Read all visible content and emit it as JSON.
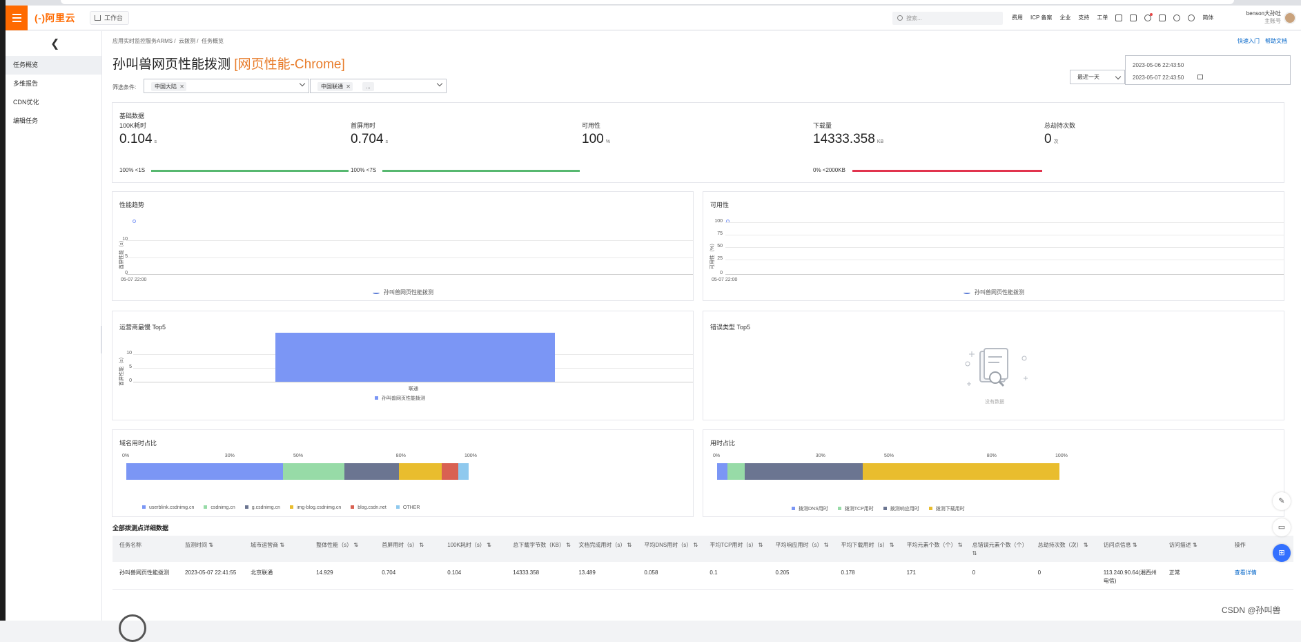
{
  "topbar": {
    "logo": "(-)阿里云",
    "workspace": "工作台",
    "search_placeholder": "搜索...",
    "links": [
      "费用",
      "ICP 备案",
      "企业",
      "支持",
      "工单"
    ],
    "lang": "简体",
    "user_name": "benson大孙吐",
    "user_role": "主账号"
  },
  "sidebar": {
    "items": [
      {
        "label": "任务概览",
        "active": true
      },
      {
        "label": "多维报告",
        "active": false
      },
      {
        "label": "CDN优化",
        "active": false
      },
      {
        "label": "编辑任务",
        "active": false
      }
    ]
  },
  "breadcrumb": [
    "应用实时监控服务ARMS",
    "云拨测",
    "任务概览"
  ],
  "breadcrumb_sep": "/",
  "help_links": [
    "快速入门",
    "帮助文档"
  ],
  "page_title": "孙叫兽网页性能拨测",
  "page_title_type": "[网页性能-Chrome]",
  "filter": {
    "label": "筛选条件:",
    "region_tag": "中国大陆",
    "operator_tag": "中国联通",
    "more_tag": "...",
    "range": "最近一天",
    "date_start": "2023-05-06 22:43:50",
    "date_end": "2023-05-07 22:43:50"
  },
  "basic": {
    "title": "基础数据",
    "metrics": [
      {
        "label": "100K耗时",
        "value": "0.104",
        "unit": "s",
        "bar_text": "100%  <1S",
        "bar_color": "#57b870"
      },
      {
        "label": "首屏用时",
        "value": "0.704",
        "unit": "s",
        "bar_text": "100%  <7S",
        "bar_color": "#57b870"
      },
      {
        "label": "可用性",
        "value": "100",
        "unit": "%",
        "bar_text": "",
        "bar_color": ""
      },
      {
        "label": "下载量",
        "value": "14333.358",
        "unit": "KB",
        "bar_text": "0%  <2000KB",
        "bar_color": "#e1344e"
      },
      {
        "label": "总劫持次数",
        "value": "0",
        "unit": "次",
        "bar_text": "",
        "bar_color": ""
      }
    ]
  },
  "perf_trend": {
    "title": "性能趋势",
    "ylabel": "首屏性能（s）",
    "yticks": [
      "15",
      "10",
      "5",
      "0"
    ],
    "xtick": "05-07 22:00",
    "legend": "孙叫兽网页性能拨测"
  },
  "availability": {
    "title": "可用性",
    "ylabel": "可用性（%）",
    "yticks": [
      "100",
      "75",
      "50",
      "25",
      "0"
    ],
    "xtick": "05-07 22:00",
    "legend": "孙叫兽网页性能拨测"
  },
  "operator_top5": {
    "title": "运营商最慢 Top5",
    "ylabel": "首屏性能（s）",
    "yticks": [
      "10",
      "5",
      "0"
    ],
    "category": "联通",
    "legend": "孙叫兽网页性能拨测",
    "bar_color": "#7b96f5"
  },
  "error_top5": {
    "title": "错误类型 Top5",
    "empty_text": "没有数据"
  },
  "domain_ratio": {
    "title": "域名用时占比",
    "pct_ticks": [
      "0%",
      "30%",
      "50%",
      "80%",
      "100%"
    ],
    "segments": [
      {
        "name": "userblink.csdnimg.cn",
        "share": 0.46,
        "color": "#7b96f5"
      },
      {
        "name": "csdnimg.cn",
        "share": 0.18,
        "color": "#97dba7"
      },
      {
        "name": "g.csdnimg.cn",
        "share": 0.16,
        "color": "#6b7591"
      },
      {
        "name": "img-blog.csdnimg.cn",
        "share": 0.125,
        "color": "#e9bd2e"
      },
      {
        "name": "blog.csdn.net",
        "share": 0.05,
        "color": "#d96152"
      },
      {
        "name": "OTHER",
        "share": 0.03,
        "color": "#8fc9ee"
      }
    ]
  },
  "time_ratio": {
    "title": "用时占比",
    "pct_ticks": [
      "0%",
      "30%",
      "50%",
      "80%",
      "100%"
    ],
    "segments": [
      {
        "name": "拨测DNS用时",
        "share": 0.03,
        "color": "#7b96f5"
      },
      {
        "name": "拨测TCP用时",
        "share": 0.05,
        "color": "#97dba7"
      },
      {
        "name": "拨测响应用时",
        "share": 0.345,
        "color": "#6b7591"
      },
      {
        "name": "拨测下载用时",
        "share": 0.575,
        "color": "#e9bd2e"
      }
    ]
  },
  "detail": {
    "title": "全部拨测点详细数据",
    "headers": [
      "任务名称",
      "监测时间 ⇅",
      "城市运营商 ⇅",
      "整体性能（s） ⇅",
      "首屏用时（s） ⇅",
      "100K耗时（s） ⇅",
      "总下载字节数（KB） ⇅",
      "文档完成用时（s） ⇅",
      "平均DNS用时（s） ⇅",
      "平均TCP用时（s） ⇅",
      "平均响应用时（s） ⇅",
      "平均下载用时（s） ⇅",
      "平均元素个数（个） ⇅",
      "总错误元素个数（个） ⇅",
      "总劫持次数（次） ⇅",
      "访问点信息 ⇅",
      "访问描述 ⇅",
      "操作"
    ],
    "rows": [
      [
        "孙叫兽网页性能拨测",
        "2023-05-07 22:41:55",
        "北京联通",
        "14.929",
        "0.704",
        "0.104",
        "14333.358",
        "13.489",
        "0.058",
        "0.1",
        "0.205",
        "0.178",
        "171",
        "0",
        "0",
        "113.240.90.64(湘西州电信)",
        "正常",
        "查看详情"
      ]
    ]
  },
  "watermark": "CSDN @孙叫兽"
}
